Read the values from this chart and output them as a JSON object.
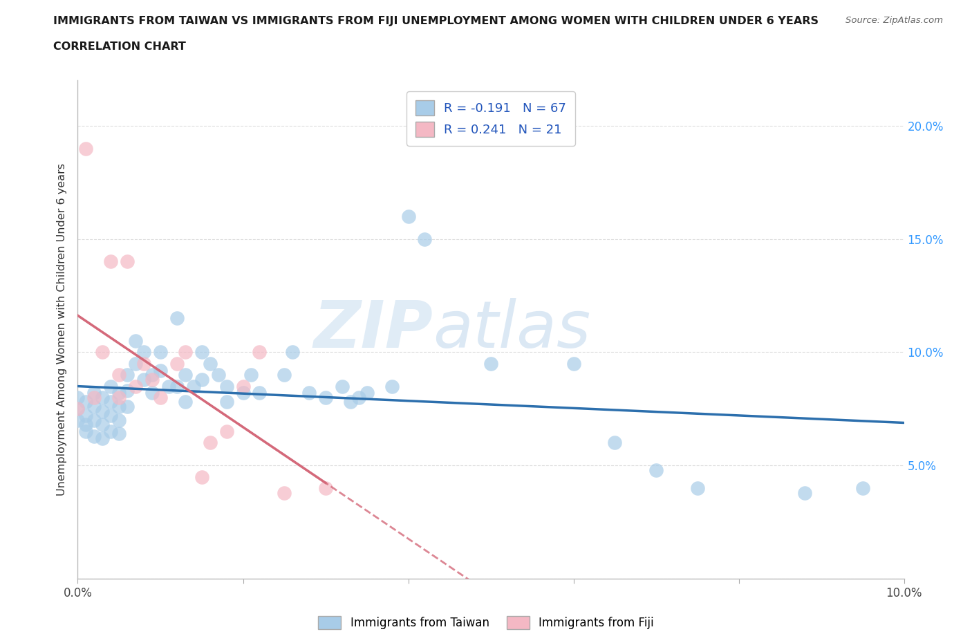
{
  "title_line1": "IMMIGRANTS FROM TAIWAN VS IMMIGRANTS FROM FIJI UNEMPLOYMENT AMONG WOMEN WITH CHILDREN UNDER 6 YEARS",
  "title_line2": "CORRELATION CHART",
  "source_text": "Source: ZipAtlas.com",
  "ylabel": "Unemployment Among Women with Children Under 6 years",
  "xlim": [
    0.0,
    0.1
  ],
  "ylim": [
    0.0,
    0.22
  ],
  "xtick_positions": [
    0.0,
    0.02,
    0.04,
    0.06,
    0.08,
    0.1
  ],
  "xticklabels": [
    "0.0%",
    "",
    "",
    "",
    "",
    "10.0%"
  ],
  "ytick_positions": [
    0.0,
    0.05,
    0.1,
    0.15,
    0.2
  ],
  "yticklabels_right": [
    "",
    "5.0%",
    "10.0%",
    "15.0%",
    "20.0%"
  ],
  "taiwan_color": "#a8cce8",
  "fiji_color": "#f4b8c4",
  "taiwan_line_color": "#2c6fad",
  "fiji_line_color": "#d4697a",
  "R_taiwan": -0.191,
  "N_taiwan": 67,
  "R_fiji": 0.241,
  "N_fiji": 21,
  "watermark_zip": "ZIP",
  "watermark_atlas": "atlas",
  "taiwan_x": [
    0.0,
    0.0,
    0.0,
    0.001,
    0.001,
    0.001,
    0.001,
    0.002,
    0.002,
    0.002,
    0.002,
    0.003,
    0.003,
    0.003,
    0.003,
    0.004,
    0.004,
    0.004,
    0.004,
    0.005,
    0.005,
    0.005,
    0.005,
    0.006,
    0.006,
    0.006,
    0.007,
    0.007,
    0.008,
    0.008,
    0.009,
    0.009,
    0.01,
    0.01,
    0.011,
    0.012,
    0.012,
    0.013,
    0.013,
    0.014,
    0.015,
    0.015,
    0.016,
    0.017,
    0.018,
    0.018,
    0.02,
    0.021,
    0.022,
    0.025,
    0.026,
    0.028,
    0.03,
    0.032,
    0.033,
    0.034,
    0.035,
    0.038,
    0.04,
    0.042,
    0.05,
    0.06,
    0.065,
    0.07,
    0.075,
    0.088,
    0.095
  ],
  "taiwan_y": [
    0.08,
    0.075,
    0.07,
    0.078,
    0.072,
    0.068,
    0.065,
    0.082,
    0.076,
    0.07,
    0.063,
    0.08,
    0.074,
    0.068,
    0.062,
    0.085,
    0.078,
    0.072,
    0.065,
    0.082,
    0.076,
    0.07,
    0.064,
    0.09,
    0.083,
    0.076,
    0.105,
    0.095,
    0.1,
    0.088,
    0.09,
    0.082,
    0.1,
    0.092,
    0.085,
    0.115,
    0.085,
    0.09,
    0.078,
    0.085,
    0.1,
    0.088,
    0.095,
    0.09,
    0.085,
    0.078,
    0.082,
    0.09,
    0.082,
    0.09,
    0.1,
    0.082,
    0.08,
    0.085,
    0.078,
    0.08,
    0.082,
    0.085,
    0.16,
    0.15,
    0.095,
    0.095,
    0.06,
    0.048,
    0.04,
    0.038,
    0.04
  ],
  "fiji_x": [
    0.0,
    0.001,
    0.002,
    0.003,
    0.004,
    0.005,
    0.005,
    0.006,
    0.007,
    0.008,
    0.009,
    0.01,
    0.012,
    0.013,
    0.015,
    0.016,
    0.018,
    0.02,
    0.022,
    0.025,
    0.03
  ],
  "fiji_y": [
    0.075,
    0.19,
    0.08,
    0.1,
    0.14,
    0.09,
    0.08,
    0.14,
    0.085,
    0.095,
    0.088,
    0.08,
    0.095,
    0.1,
    0.045,
    0.06,
    0.065,
    0.085,
    0.1,
    0.038,
    0.04
  ]
}
